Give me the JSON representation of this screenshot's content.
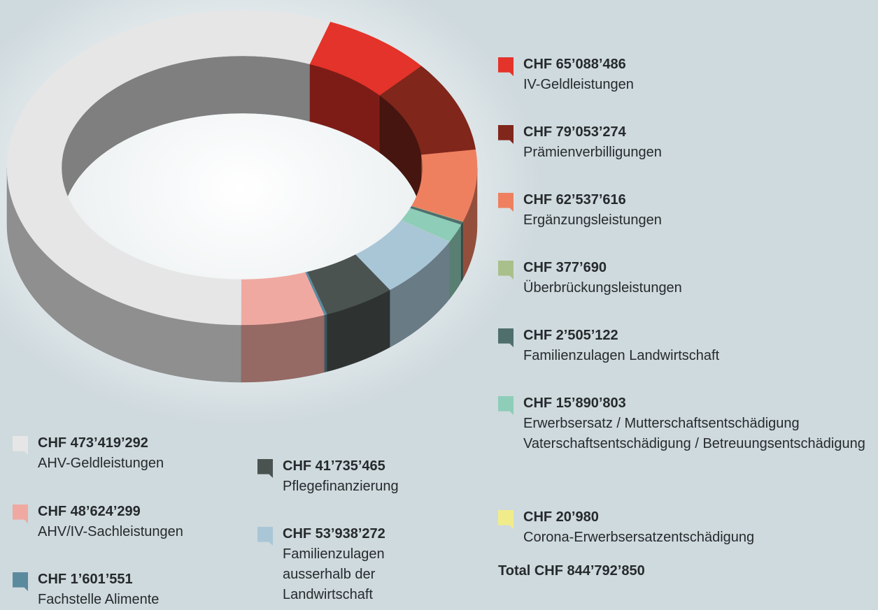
{
  "chart_data": {
    "type": "pie",
    "categories": [
      "IV-Geldleistungen",
      "Prämienverbilligungen",
      "Ergänzungsleistungen",
      "Überbrückungsleistungen",
      "Familienzulagen Landwirtschaft",
      "Erwerbsersatz / Mutterschaftsentschädigung Vaterschaftsentschädigung / Betreuungs­entschädigung",
      "Corona-Erwerbsersatzentschädigung",
      "Familienzulagen ausserhalb der Landwirtschaft",
      "Pflegefinanzierung",
      "Fachstelle Alimente",
      "AHV/IV-Sachleistungen",
      "AHV-Geldleistungen"
    ],
    "values": [
      65088486,
      79053274,
      62537616,
      377690,
      2505122,
      15890803,
      20980,
      53938272,
      41735465,
      1601551,
      48624299,
      473419292
    ],
    "value_labels": [
      "CHF 65’088’486",
      "CHF 79’053’274",
      "CHF 62’537’616",
      "CHF 377’690",
      "CHF 2’505’122",
      "CHF 15’890’803",
      "CHF 20’980",
      "CHF 53’938’272",
      "CHF 41’735’465",
      "CHF 1’601’551",
      "CHF 48’624’299",
      "CHF 473’419’292"
    ],
    "colors": [
      "#e4332a",
      "#80261b",
      "#ee8060",
      "#a9c08b",
      "#4f6f6d",
      "#8ecdb8",
      "#f1ec8a",
      "#a9c6d7",
      "#4a5350",
      "#5b8a9f",
      "#f0a9a1",
      "#e6e6e6"
    ],
    "total_label": "Total CHF 844’792’850"
  }
}
